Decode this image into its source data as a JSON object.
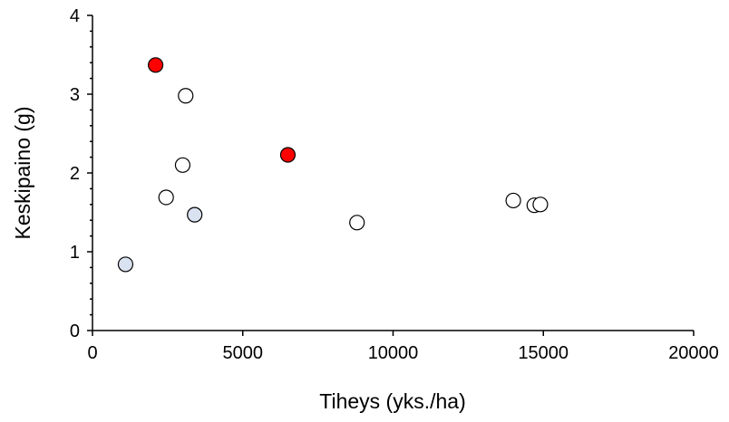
{
  "chart_data": {
    "type": "scatter",
    "xlabel": "Tiheys (yks./ha)",
    "ylabel": "Keskipaino (g)",
    "xlim": [
      0,
      20000
    ],
    "ylim": [
      0,
      4
    ],
    "x_ticks": [
      "0",
      "5000",
      "10000",
      "15000",
      "20000"
    ],
    "y_ticks": [
      "0",
      "1",
      "2",
      "3",
      "4"
    ],
    "grid": false,
    "legend": "none",
    "colors": {
      "white": "#ffffff",
      "red": "#ff0000",
      "lightblue": "#d9e2f0"
    },
    "points": [
      {
        "x": 1100,
        "y": 0.84,
        "color": "lightblue"
      },
      {
        "x": 2100,
        "y": 3.37,
        "color": "red"
      },
      {
        "x": 2450,
        "y": 1.69,
        "color": "white"
      },
      {
        "x": 3000,
        "y": 2.1,
        "color": "white"
      },
      {
        "x": 3100,
        "y": 2.98,
        "color": "white"
      },
      {
        "x": 3400,
        "y": 1.47,
        "color": "lightblue"
      },
      {
        "x": 6500,
        "y": 2.23,
        "color": "red"
      },
      {
        "x": 8800,
        "y": 1.37,
        "color": "white"
      },
      {
        "x": 14000,
        "y": 1.65,
        "color": "white"
      },
      {
        "x": 14700,
        "y": 1.59,
        "color": "white"
      },
      {
        "x": 14900,
        "y": 1.6,
        "color": "white"
      }
    ]
  }
}
